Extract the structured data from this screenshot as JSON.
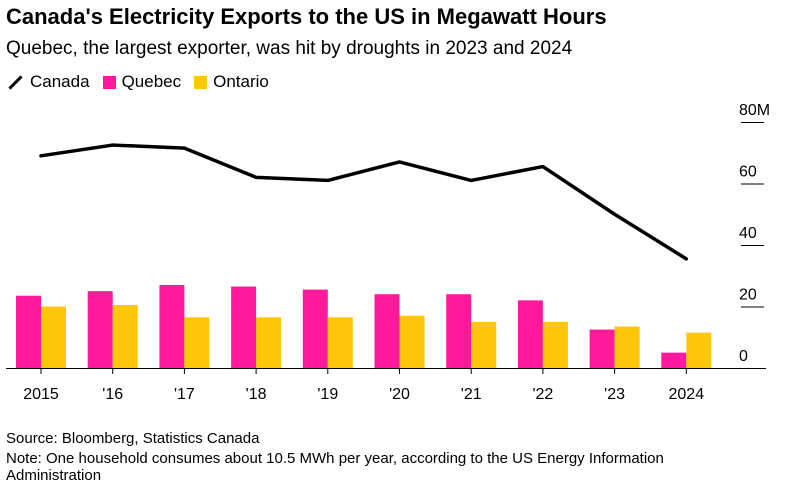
{
  "header": {
    "title": "Canada's Electricity Exports to the US in Megawatt Hours",
    "subtitle": "Quebec, the largest exporter, was hit by droughts in 2023 and 2024"
  },
  "legend": [
    {
      "label": "Canada",
      "kind": "line",
      "color": "#000000"
    },
    {
      "label": "Quebec",
      "kind": "bar",
      "color": "#ff1a9b"
    },
    {
      "label": "Ontario",
      "kind": "bar",
      "color": "#ffc60a"
    }
  ],
  "chart_data": {
    "type": "bar",
    "title": "Canada's Electricity Exports to the US in Megawatt Hours",
    "categories": [
      "2015",
      "'16",
      "'17",
      "'18",
      "'19",
      "'20",
      "'21",
      "'22",
      "'23",
      "2024"
    ],
    "series": [
      {
        "name": "Quebec",
        "type": "bar",
        "color": "#ff1a9b",
        "values": [
          23.5,
          25,
          27,
          26.5,
          25.5,
          24,
          24,
          22,
          12.5,
          5
        ]
      },
      {
        "name": "Ontario",
        "type": "bar",
        "color": "#ffc60a",
        "values": [
          20,
          20.5,
          16.5,
          16.5,
          16.5,
          17,
          15,
          15,
          13.5,
          11.5
        ]
      },
      {
        "name": "Canada",
        "type": "line",
        "color": "#000000",
        "values": [
          69,
          72.5,
          71.5,
          62,
          61,
          67,
          61,
          65.5,
          50,
          35.5
        ]
      }
    ],
    "yaxis": {
      "min": 0,
      "max": 80,
      "ticks": [
        0,
        20,
        40,
        60,
        80
      ],
      "tick_labels": [
        "0",
        "20",
        "40",
        "60",
        "80M"
      ]
    },
    "xlabel": "",
    "ylabel": "",
    "grid": false,
    "legend_position": "top-left"
  },
  "footer": {
    "source": "Source: Bloomberg, Statistics Canada",
    "note": "Note: One household consumes about 10.5 MWh per year, according to the US Energy Information Administration"
  }
}
